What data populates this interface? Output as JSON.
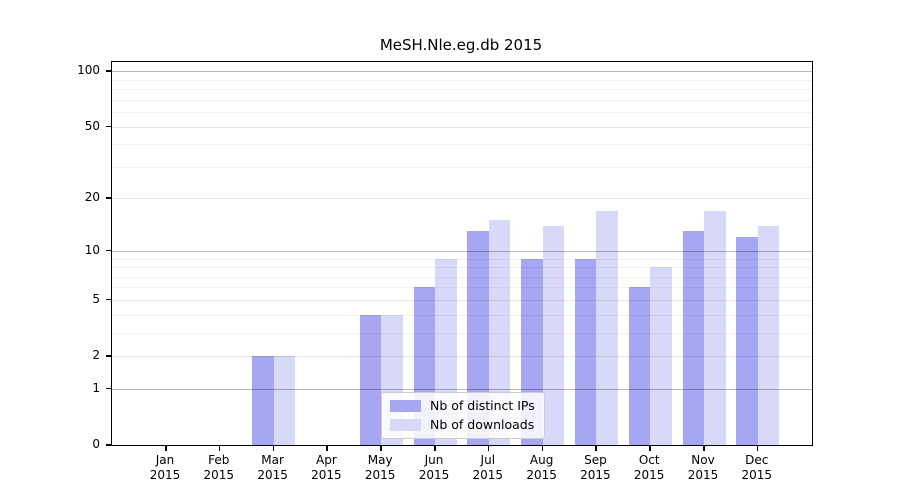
{
  "chart_data": {
    "type": "bar",
    "title": "MeSH.Nle.eg.db 2015",
    "categories": [
      {
        "month": "Jan",
        "year": "2015"
      },
      {
        "month": "Feb",
        "year": "2015"
      },
      {
        "month": "Mar",
        "year": "2015"
      },
      {
        "month": "Apr",
        "year": "2015"
      },
      {
        "month": "May",
        "year": "2015"
      },
      {
        "month": "Jun",
        "year": "2015"
      },
      {
        "month": "Jul",
        "year": "2015"
      },
      {
        "month": "Aug",
        "year": "2015"
      },
      {
        "month": "Sep",
        "year": "2015"
      },
      {
        "month": "Oct",
        "year": "2015"
      },
      {
        "month": "Nov",
        "year": "2015"
      },
      {
        "month": "Dec",
        "year": "2015"
      }
    ],
    "series": [
      {
        "name": "Nb of distinct IPs",
        "color": "#a6a6f2",
        "values": [
          0,
          0,
          2,
          0,
          4,
          6,
          13,
          9,
          9,
          6,
          13,
          12
        ]
      },
      {
        "name": "Nb of downloads",
        "color": "#d8d8f8",
        "values": [
          0,
          0,
          2,
          0,
          4,
          9,
          15,
          14,
          17,
          8,
          17,
          14
        ]
      }
    ],
    "xlabel": "",
    "ylabel": "",
    "y_axis": {
      "scale": "log1p",
      "tick_labels": [
        "0",
        "1",
        "2",
        "5",
        "10",
        "20",
        "50",
        "100"
      ],
      "ticks": [
        0,
        1,
        2,
        5,
        10,
        20,
        50,
        100
      ],
      "emphasized_gridlines": [
        1,
        10,
        100
      ],
      "mid_gridlines": [
        2,
        5,
        20,
        50
      ],
      "minor_gridlines": [
        3,
        4,
        6,
        7,
        8,
        9,
        30,
        40,
        60,
        70,
        80,
        90
      ],
      "range_top": 110
    },
    "grid": "on",
    "legend_position": "inside-bottom-center"
  },
  "legend": {
    "items": [
      {
        "label": "Nb of distinct IPs"
      },
      {
        "label": "Nb of downloads"
      }
    ]
  }
}
